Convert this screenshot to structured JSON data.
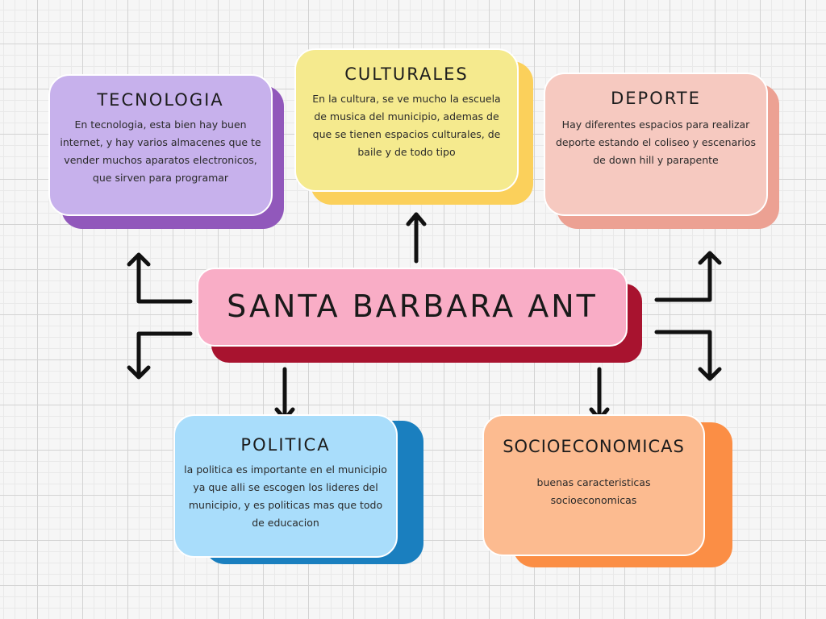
{
  "center": {
    "title": "SANTA BARBARA ANT",
    "color": "#f9adc6",
    "shadow": "#a8132f"
  },
  "topics": {
    "tecnologia": {
      "title": "TECNOLOGIA",
      "body": "En tecnologia, esta bien hay buen internet, y hay varios almacenes que te vender muchos aparatos electronicos, que sirven para programar",
      "color": "#c7b1ec",
      "shadow": "#9158bb"
    },
    "culturales": {
      "title": "CULTURALES",
      "body": "En la cultura, se ve mucho la escuela de musica del municipio, ademas de que se tienen espacios culturales, de baile y de todo tipo",
      "color": "#f5ea8e",
      "shadow": "#fbd05b"
    },
    "deporte": {
      "title": "DEPORTE",
      "body": "Hay diferentes espacios para realizar deporte estando el coliseo y escenarios de down hill y parapente",
      "color": "#f6c9c0",
      "shadow": "#eca193"
    },
    "politica": {
      "title": "POLITICA",
      "body": "la politica es importante en el municipio ya que alli se escogen los lideres del municipio, y es politicas mas que todo de educacion",
      "color": "#a9ddfb",
      "shadow": "#1a7fbf"
    },
    "socioeconomicas": {
      "title": "SOCIOECONOMICAS",
      "body": "buenas caracteristicas socioeconomicas",
      "color": "#fcbb90",
      "shadow": "#fb8e45"
    }
  }
}
